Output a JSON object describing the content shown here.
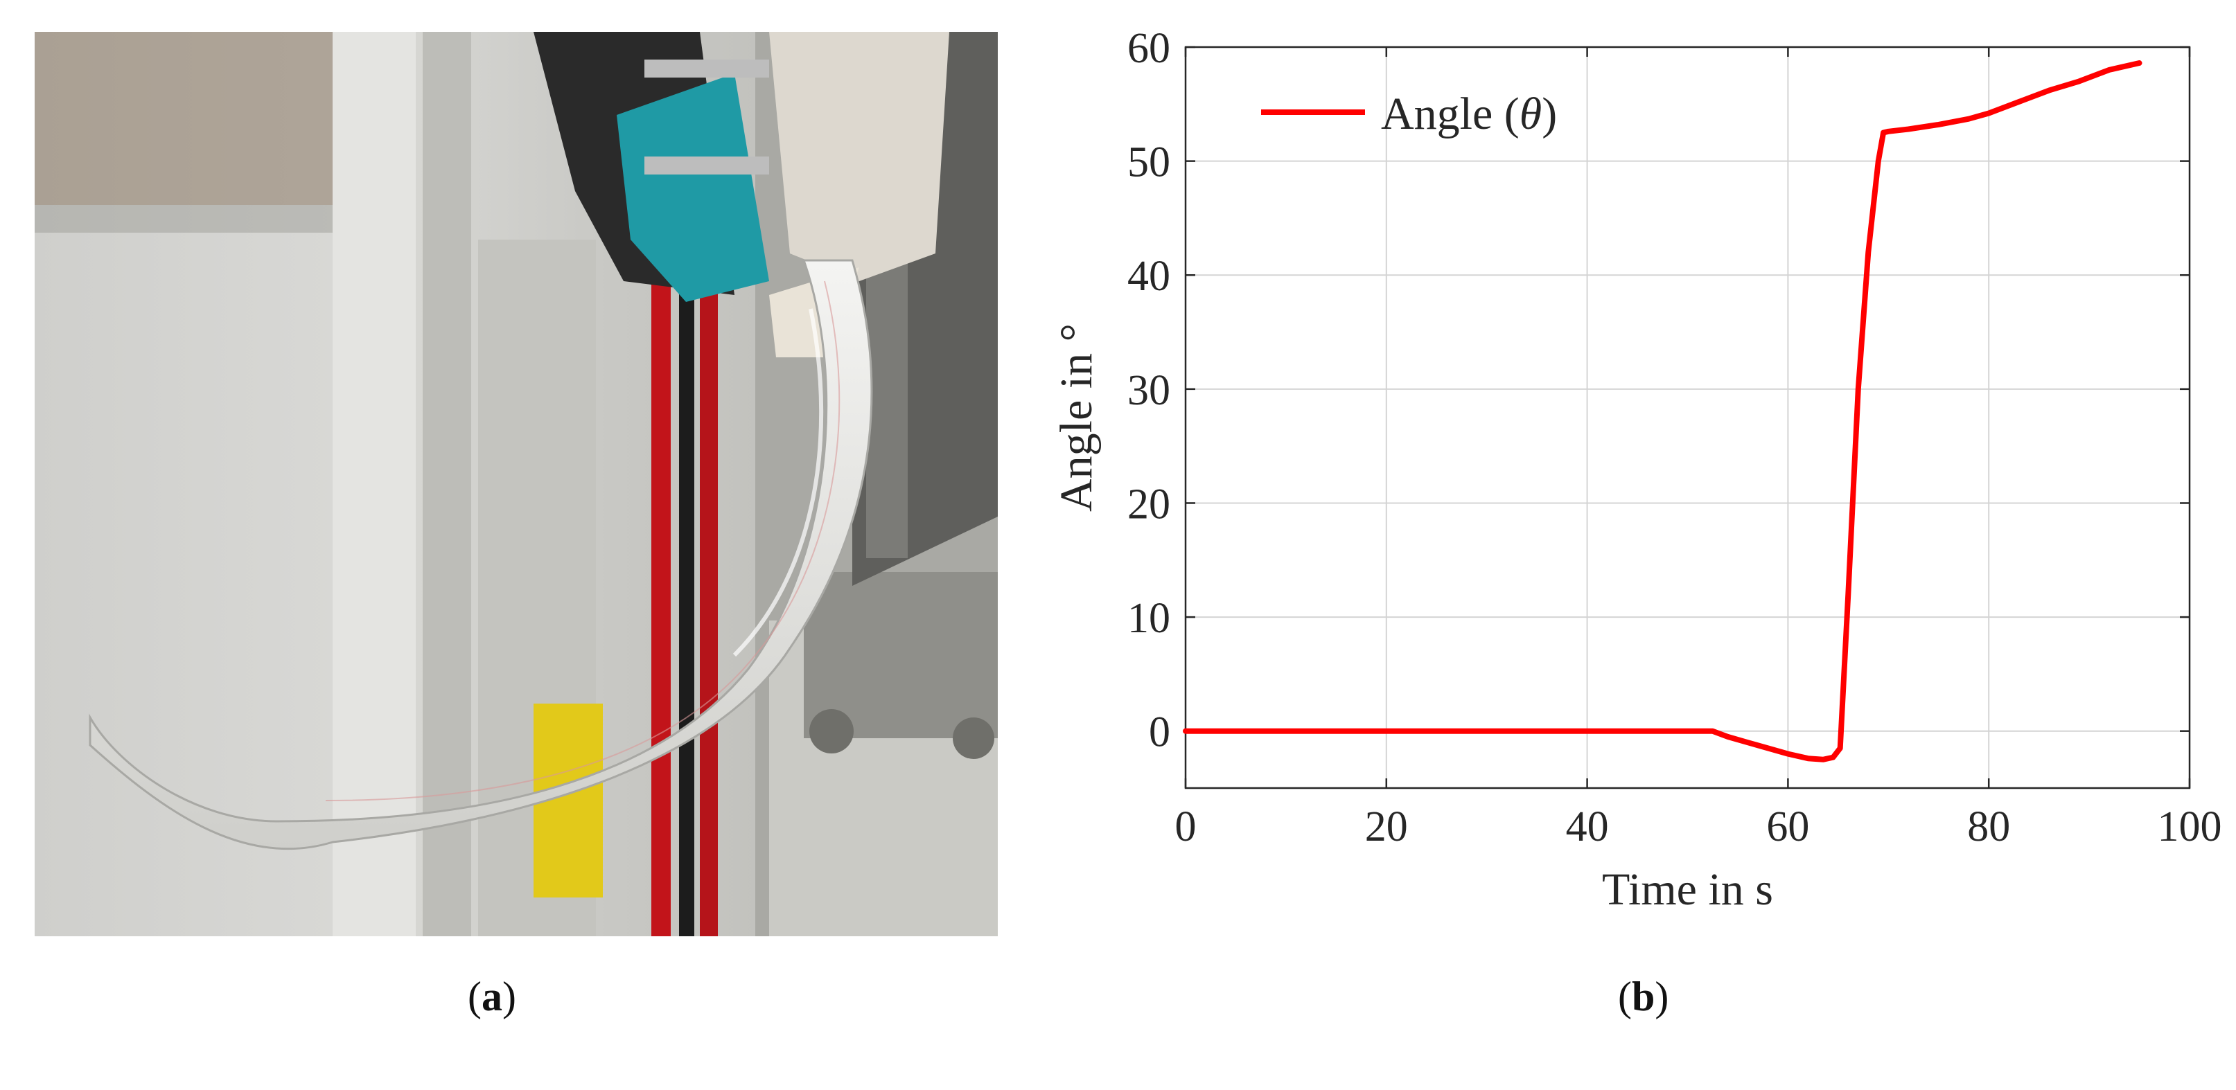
{
  "captions": {
    "a": "a",
    "b": "b"
  },
  "photo": {
    "description_icon": "bent-soft-actuator-photo"
  },
  "chart_data": {
    "type": "line",
    "xlabel": "Time in s",
    "ylabel": "Angle in °",
    "xlim": [
      0,
      100
    ],
    "ylim": [
      -5,
      60
    ],
    "xticks": [
      0,
      20,
      40,
      60,
      80,
      100
    ],
    "yticks": [
      0,
      10,
      20,
      30,
      40,
      50,
      60
    ],
    "grid": true,
    "legend_position": "top-left",
    "series": [
      {
        "name": "Angle (θ)",
        "legend_main": "Angle (",
        "legend_symbol": "θ",
        "legend_close": ")",
        "color": "#ff0000",
        "x": [
          0,
          10,
          20,
          30,
          40,
          50,
          52.5,
          54,
          56,
          58,
          60,
          62,
          63.5,
          64.5,
          65.2,
          66,
          67,
          68,
          69,
          69.5,
          70,
          72,
          75,
          78,
          80,
          83,
          86,
          89,
          92,
          95
        ],
        "y": [
          0,
          0,
          0,
          0,
          0,
          0,
          0,
          -0.5,
          -1.0,
          -1.5,
          -2.0,
          -2.4,
          -2.5,
          -2.3,
          -1.5,
          12,
          30,
          42,
          50,
          52.5,
          52.6,
          52.8,
          53.2,
          53.7,
          54.2,
          55.2,
          56.2,
          57.0,
          58.0,
          58.6
        ]
      }
    ]
  }
}
